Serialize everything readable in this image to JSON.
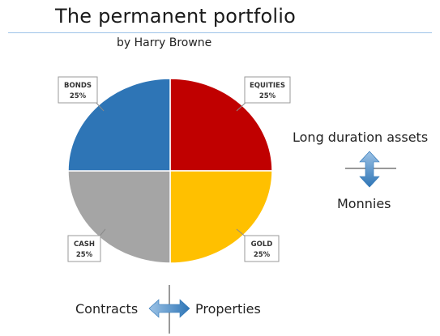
{
  "title": "The permanent portfolio",
  "subtitle": "by Harry Browne",
  "chart_data": {
    "type": "pie",
    "slices": [
      {
        "label": "EQUITIES",
        "percent_label": "25%",
        "value": 25,
        "color": "#c00000"
      },
      {
        "label": "GOLD",
        "percent_label": "25%",
        "value": 25,
        "color": "#ffc000"
      },
      {
        "label": "CASH",
        "percent_label": "25%",
        "value": 25,
        "color": "#a5a5a5"
      },
      {
        "label": "BONDS",
        "percent_label": "25%",
        "value": 25,
        "color": "#2e75b6"
      }
    ]
  },
  "annotations": {
    "long_duration": "Long duration assets",
    "monnies": "Monnies",
    "contracts": "Contracts",
    "properties": "Properties"
  },
  "colors": {
    "arrow_light": "#9dc3e6",
    "arrow_dark": "#2e75b6",
    "title_rule": "#9ec3e8"
  }
}
